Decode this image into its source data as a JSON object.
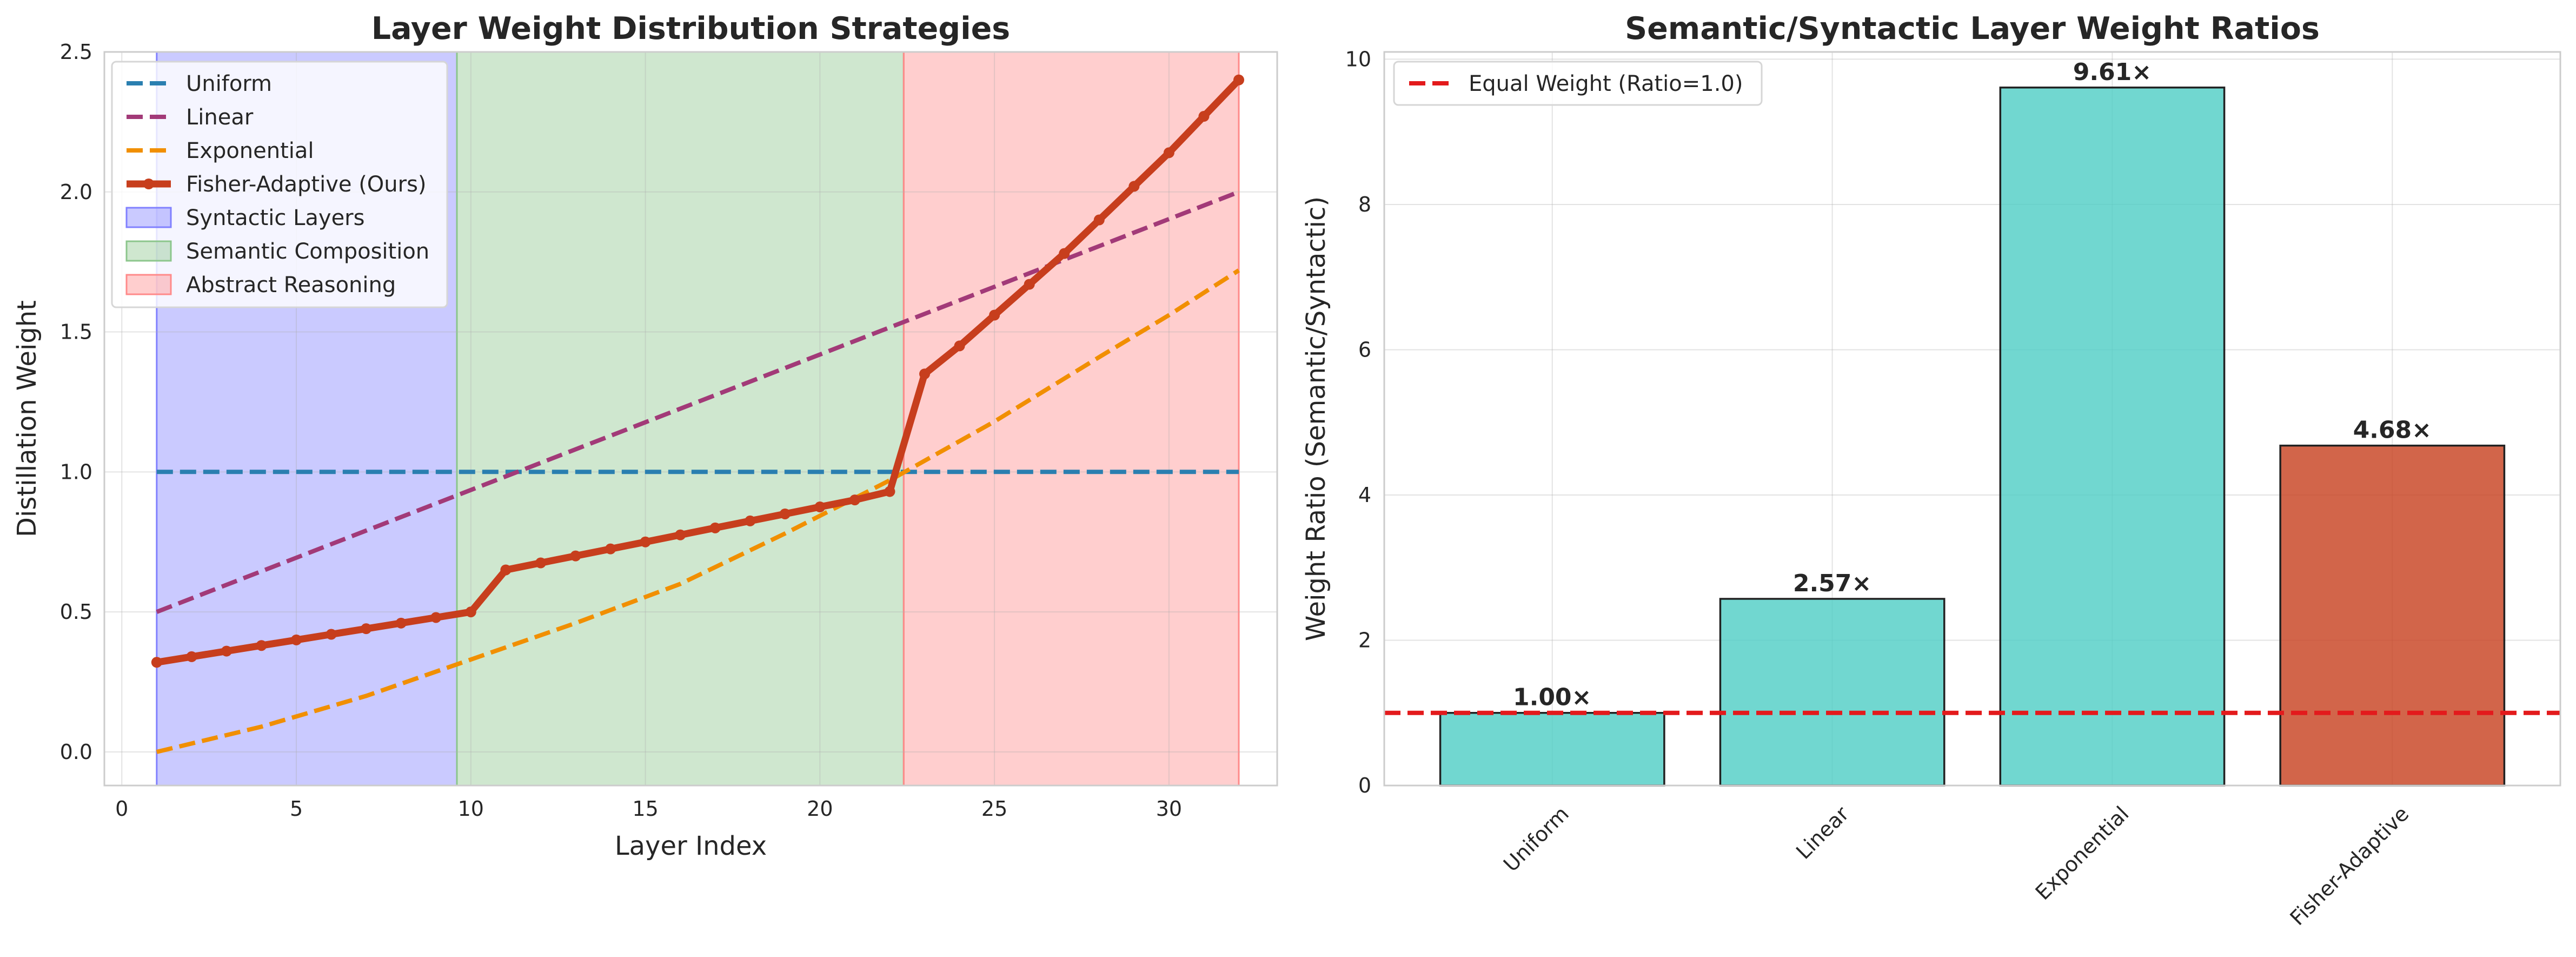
{
  "chart_data": [
    {
      "type": "line",
      "title": "Layer Weight Distribution Strategies",
      "xlabel": "Layer Index",
      "ylabel": "Distillation Weight",
      "xlim": [
        -0.5,
        33.1
      ],
      "ylim": [
        -0.12,
        2.5
      ],
      "xticks": [
        0,
        5,
        10,
        15,
        20,
        25,
        30
      ],
      "yticks": [
        0.0,
        0.5,
        1.0,
        1.5,
        2.0,
        2.5
      ],
      "grid": true,
      "legend_position": "top-left",
      "regions": [
        {
          "name": "Syntactic Layers",
          "x0": 1,
          "x1": 9.6,
          "color": "#8080ff"
        },
        {
          "name": "Semantic Composition",
          "x0": 9.6,
          "x1": 22.4,
          "color": "#8cc68c"
        },
        {
          "name": "Abstract Reasoning",
          "x0": 22.4,
          "x1": 32,
          "color": "#ff8a8a"
        }
      ],
      "series": [
        {
          "name": "Uniform",
          "style": "dashed",
          "color": "#2a7fb0",
          "x": [
            1,
            32
          ],
          "y": [
            1.0,
            1.0
          ]
        },
        {
          "name": "Linear",
          "style": "dashed",
          "color": "#a23a78",
          "x": [
            1,
            32
          ],
          "y": [
            0.5,
            2.0
          ]
        },
        {
          "name": "Exponential",
          "style": "dashed",
          "color": "#f18f01",
          "x": [
            1,
            4,
            7,
            10,
            13,
            16,
            19,
            22,
            25,
            28,
            30,
            32
          ],
          "y": [
            0.0,
            0.09,
            0.2,
            0.33,
            0.46,
            0.6,
            0.78,
            0.97,
            1.18,
            1.41,
            1.56,
            1.72
          ]
        },
        {
          "name": "Fisher-Adaptive (Ours)",
          "style": "solid-markers",
          "color": "#c73e1d",
          "x": [
            1,
            2,
            3,
            4,
            5,
            6,
            7,
            8,
            9,
            10,
            11,
            12,
            13,
            14,
            15,
            16,
            17,
            18,
            19,
            20,
            21,
            22,
            23,
            24,
            25,
            26,
            27,
            28,
            29,
            30,
            31,
            32
          ],
          "y": [
            0.32,
            0.34,
            0.36,
            0.38,
            0.4,
            0.42,
            0.44,
            0.46,
            0.48,
            0.5,
            0.65,
            0.675,
            0.7,
            0.725,
            0.75,
            0.775,
            0.8,
            0.825,
            0.85,
            0.875,
            0.9,
            0.93,
            1.35,
            1.45,
            1.56,
            1.67,
            1.78,
            1.9,
            2.02,
            2.14,
            2.27,
            2.4
          ]
        }
      ]
    },
    {
      "type": "bar",
      "title": "Semantic/Syntactic Layer Weight Ratios",
      "xlabel": "",
      "ylabel": "Weight Ratio (Semantic/Syntactic)",
      "ylim": [
        0,
        10.1
      ],
      "yticks": [
        0,
        2,
        4,
        6,
        8,
        10
      ],
      "grid": true,
      "legend_position": "top-left",
      "categories": [
        "Uniform",
        "Linear",
        "Exponential",
        "Fisher-Adaptive"
      ],
      "values": [
        1.0,
        2.57,
        9.61,
        4.68
      ],
      "value_labels": [
        "1.00×",
        "2.57×",
        "9.61×",
        "4.68×"
      ],
      "bar_colors": [
        "#4ecdc4",
        "#4ecdc4",
        "#4ecdc4",
        "#c73e1d"
      ],
      "reference_line": {
        "name": "Equal Weight (Ratio=1.0)",
        "y": 1.0,
        "color": "#e31a1c"
      }
    }
  ]
}
